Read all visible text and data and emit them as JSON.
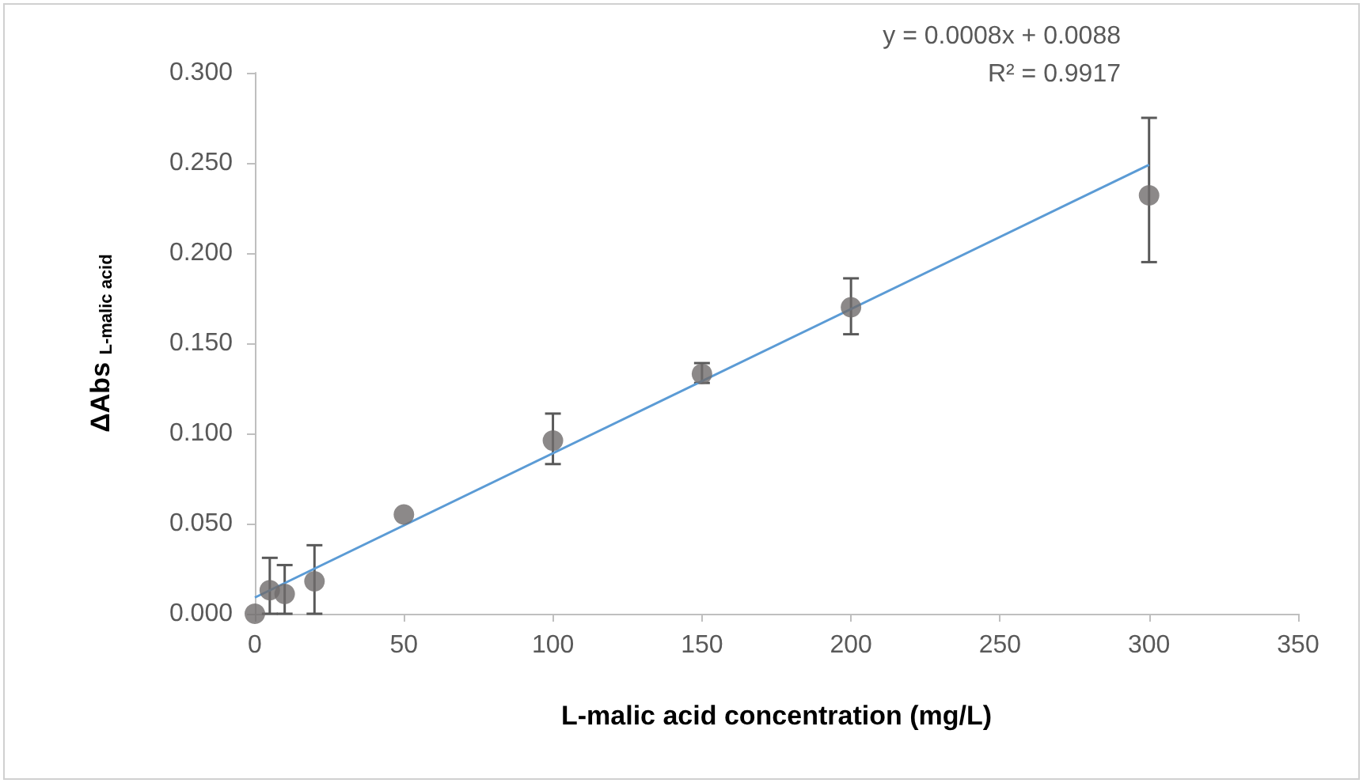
{
  "chart_data": {
    "type": "scatter",
    "xlabel": "L-malic acid concentration (mg/L)",
    "ylabel": "ΔAbs $_{L-malic acid}$",
    "series": [
      {
        "marker": "circle",
        "color": "#6f6b6b",
        "x": [
          0,
          5,
          10,
          20,
          50,
          100,
          150,
          200,
          300
        ],
        "values": [
          0.0,
          0.013,
          0.011,
          0.018,
          0.055,
          0.096,
          0.133,
          0.17,
          0.232
        ],
        "errors": [
          null,
          [
            0.0,
            0.031
          ],
          [
            0.0,
            0.027
          ],
          [
            0.0,
            0.038
          ],
          null,
          [
            0.083,
            0.111
          ],
          [
            0.128,
            0.139
          ],
          [
            0.155,
            0.186
          ],
          [
            0.195,
            0.275
          ]
        ]
      },
      {
        "type": "line",
        "marker": "none",
        "color": "#5b9bd5",
        "x": [
          0,
          300
        ],
        "values": [
          0.009,
          0.249
        ]
      }
    ],
    "annotations": [
      "y = 0.0008x + 0.0088",
      "R² = 0.9917"
    ],
    "xlim": [
      0,
      350
    ],
    "xticks": [
      0,
      50,
      100,
      150,
      200,
      250,
      300,
      350
    ],
    "ylim": [
      0,
      0.3
    ],
    "yticks": [
      {
        "value": 0,
        "label": "0.000"
      },
      {
        "value": 0.05,
        "label": "0.050"
      },
      {
        "value": 0.1,
        "label": "0.100"
      },
      {
        "value": 0.15,
        "label": "0.150"
      },
      {
        "value": 0.2,
        "label": "0.200"
      },
      {
        "value": 0.25,
        "label": "0.250"
      },
      {
        "value": 0.3,
        "label": "0.300"
      }
    ],
    "grid": false
  }
}
